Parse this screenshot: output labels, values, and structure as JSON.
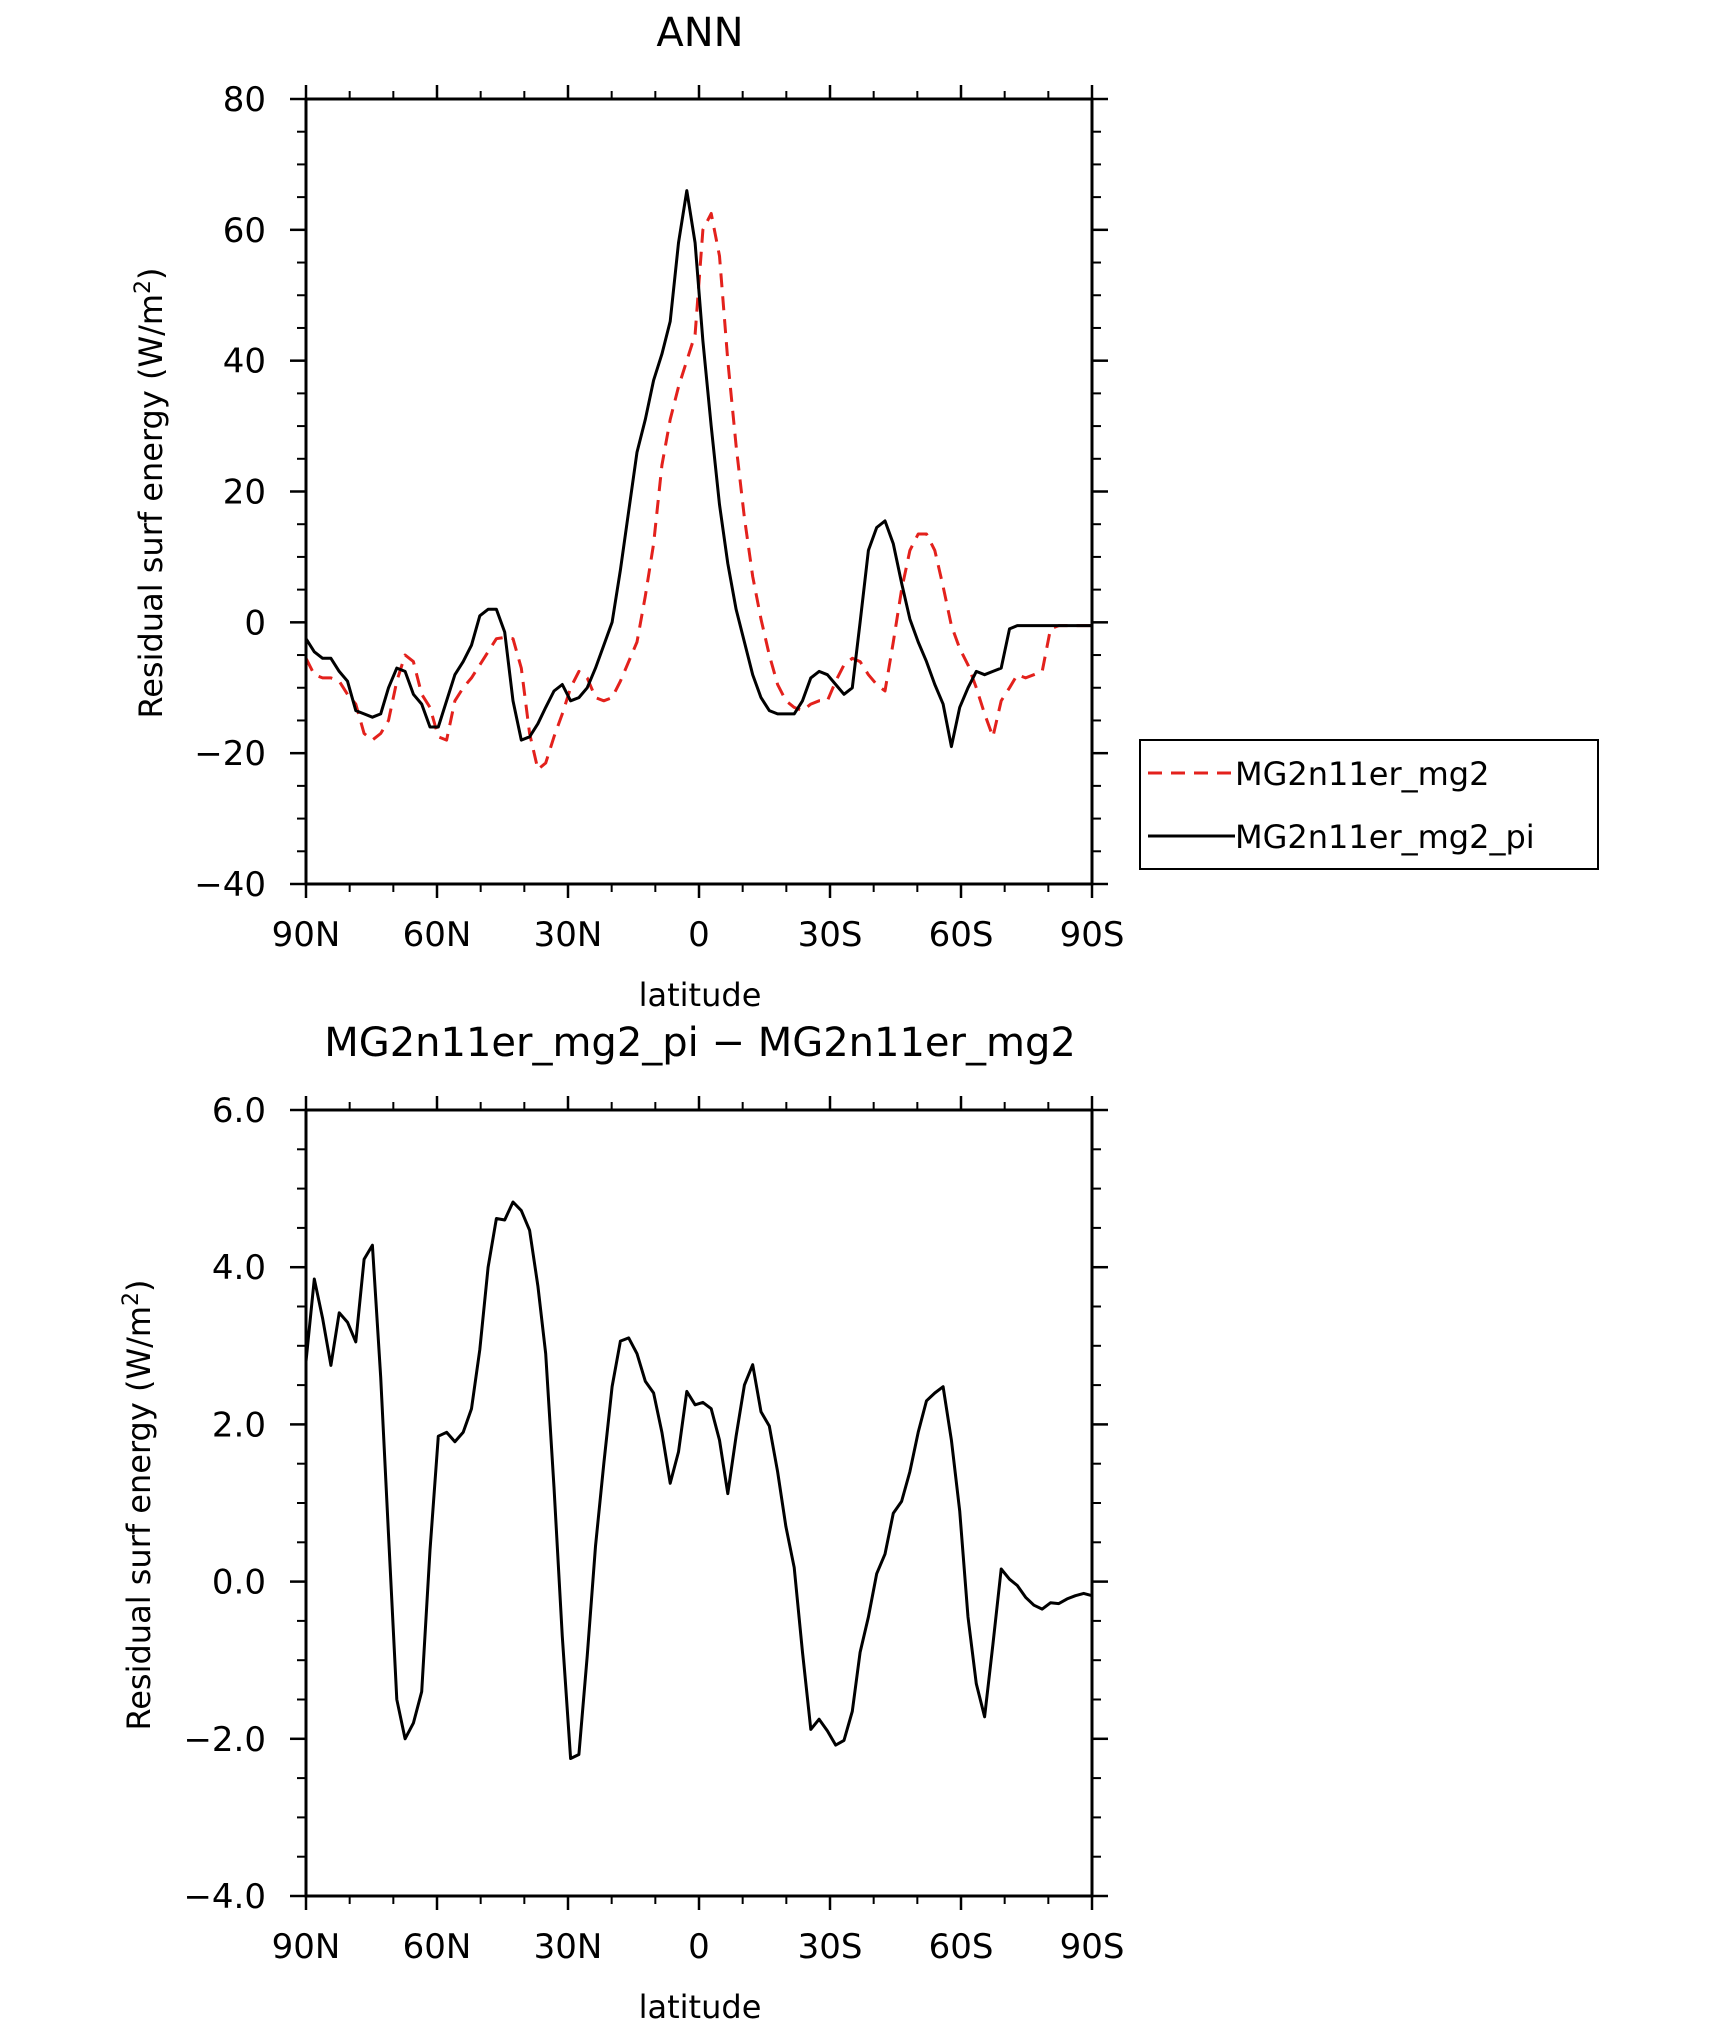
{
  "chart_data": [
    {
      "type": "line",
      "title": "ANN",
      "xlabel": "latitude",
      "ylabel": "Residual surf energy (W/m²)",
      "ylabel_parts": {
        "main": "Residual surf energy (W/m",
        "sup": "2",
        "end": ")"
      },
      "xlim": [
        90,
        -90
      ],
      "ylim": [
        -40,
        80
      ],
      "xticks": [
        {
          "value": 90,
          "label": "90N"
        },
        {
          "value": 60,
          "label": "60N"
        },
        {
          "value": 30,
          "label": "30N"
        },
        {
          "value": 0,
          "label": "0"
        },
        {
          "value": -30,
          "label": "30S"
        },
        {
          "value": -60,
          "label": "60S"
        },
        {
          "value": -90,
          "label": "90S"
        }
      ],
      "yticks": [
        {
          "value": 80,
          "label": "80"
        },
        {
          "value": 60,
          "label": "60"
        },
        {
          "value": 40,
          "label": "40"
        },
        {
          "value": 20,
          "label": "20"
        },
        {
          "value": 0,
          "label": "0"
        },
        {
          "value": -20,
          "label": "−20"
        },
        {
          "value": -40,
          "label": "−40"
        }
      ],
      "legend_position": "right",
      "series": [
        {
          "name": "MG2n11er_mg2",
          "color": "#e3211c",
          "dash": "dashed",
          "x": [
            90,
            88.1,
            86.2,
            84.3,
            82.4,
            80.5,
            78.6,
            76.7,
            74.8,
            72.9,
            71.1,
            69.2,
            67.3,
            65.4,
            63.5,
            61.6,
            59.7,
            57.8,
            55.9,
            54.0,
            52.1,
            50.2,
            48.3,
            46.4,
            44.5,
            42.6,
            40.7,
            38.8,
            36.9,
            35.1,
            33.2,
            31.3,
            29.4,
            27.5,
            25.6,
            23.7,
            21.8,
            19.9,
            18.0,
            16.1,
            14.2,
            12.3,
            10.4,
            8.5,
            6.6,
            4.7,
            2.8,
            0.9,
            -0.9,
            -2.8,
            -4.7,
            -6.6,
            -8.5,
            -10.4,
            -12.3,
            -14.2,
            -16.1,
            -18.0,
            -19.9,
            -21.8,
            -23.7,
            -25.6,
            -27.5,
            -29.4,
            -31.3,
            -33.2,
            -35.1,
            -36.9,
            -38.8,
            -40.7,
            -42.6,
            -44.5,
            -46.4,
            -48.3,
            -50.2,
            -52.1,
            -54.0,
            -55.9,
            -57.8,
            -59.7,
            -61.6,
            -63.5,
            -65.4,
            -67.3,
            -69.2,
            -71.1,
            -72.9,
            -74.8,
            -76.7,
            -78.6,
            -80.5,
            -82.4,
            -84.3,
            -86.2,
            -88.1,
            -90
          ],
          "y": [
            -5.5,
            -8,
            -8.5,
            -8.5,
            -9,
            -11,
            -12.5,
            -17,
            -18,
            -17,
            -15,
            -9,
            -5,
            -6,
            -11,
            -13,
            -17.5,
            -18,
            -12,
            -10,
            -8.5,
            -6.5,
            -4.5,
            -2.5,
            -2.3,
            -2.5,
            -7,
            -17,
            -22.5,
            -21.5,
            -17.5,
            -14,
            -10,
            -7.5,
            -8.5,
            -11.5,
            -12,
            -11.5,
            -9,
            -6,
            -3,
            4,
            12,
            24,
            31,
            36,
            40,
            44,
            60,
            62.5,
            56,
            40,
            27,
            16,
            7,
            0.5,
            -5,
            -9.5,
            -12,
            -13,
            -13.5,
            -12.5,
            -12,
            -12,
            -9,
            -6.5,
            -5.5,
            -6,
            -8,
            -9.5,
            -10.5,
            -3,
            5,
            11,
            13.5,
            13.5,
            11,
            5.5,
            -0.5,
            -4,
            -6.5,
            -10,
            -14,
            -17.5,
            -12,
            -10,
            -8,
            -8.5,
            -8,
            -7.5,
            -1,
            -0.5,
            -0.5,
            -0.5,
            -0.5,
            -0.5
          ]
        },
        {
          "name": "MG2n11er_mg2_pi",
          "color": "#000000",
          "dash": "solid",
          "x": [
            90,
            88.1,
            86.2,
            84.3,
            82.4,
            80.5,
            78.6,
            76.7,
            74.8,
            72.9,
            71.1,
            69.2,
            67.3,
            65.4,
            63.5,
            61.6,
            59.7,
            57.8,
            55.9,
            54.0,
            52.1,
            50.2,
            48.3,
            46.4,
            44.5,
            42.6,
            40.7,
            38.8,
            36.9,
            35.1,
            33.2,
            31.3,
            29.4,
            27.5,
            25.6,
            23.7,
            21.8,
            19.9,
            18.0,
            16.1,
            14.2,
            12.3,
            10.4,
            8.5,
            6.6,
            4.7,
            2.8,
            0.9,
            -0.9,
            -2.8,
            -4.7,
            -6.6,
            -8.5,
            -10.4,
            -12.3,
            -14.2,
            -16.1,
            -18.0,
            -19.9,
            -21.8,
            -23.7,
            -25.6,
            -27.5,
            -29.4,
            -31.3,
            -33.2,
            -35.1,
            -36.9,
            -38.8,
            -40.7,
            -42.6,
            -44.5,
            -46.4,
            -48.3,
            -50.2,
            -52.1,
            -54.0,
            -55.9,
            -57.8,
            -59.7,
            -61.6,
            -63.5,
            -65.4,
            -67.3,
            -69.2,
            -71.1,
            -72.9,
            -74.8,
            -76.7,
            -78.6,
            -80.5,
            -82.4,
            -84.3,
            -86.2,
            -88.1,
            -90
          ],
          "y": [
            -2.5,
            -4.5,
            -5.5,
            -5.5,
            -7.5,
            -9,
            -13.5,
            -14,
            -14.5,
            -14,
            -10,
            -7,
            -7.5,
            -11,
            -12.5,
            -16,
            -16,
            -12,
            -8,
            -6,
            -3.5,
            1,
            2,
            2,
            -1.5,
            -12,
            -18,
            -17.5,
            -15.5,
            -13,
            -10.5,
            -9.5,
            -12,
            -11.5,
            -10,
            -7,
            -3.5,
            0,
            8,
            17,
            26,
            31,
            37,
            41,
            46,
            58,
            66,
            58,
            43,
            30,
            18,
            9,
            2,
            -3,
            -8,
            -11.5,
            -13.5,
            -14,
            -14,
            -14,
            -12,
            -8.5,
            -7.5,
            -8,
            -9.5,
            -11,
            -10,
            0,
            11,
            14.5,
            15.5,
            12,
            6,
            0.5,
            -3,
            -6,
            -9.5,
            -12.5,
            -19,
            -13,
            -10,
            -7.5,
            -8,
            -7.5,
            -7,
            -1,
            -0.5,
            -0.5,
            -0.5,
            -0.5,
            -0.5,
            -0.5,
            -0.5,
            -0.5,
            -0.5,
            -0.5
          ]
        }
      ]
    },
    {
      "type": "line",
      "title": "MG2n11er_mg2_pi − MG2n11er_mg2",
      "xlabel": "latitude",
      "ylabel": "Residual surf energy (W/m²)",
      "ylabel_parts": {
        "main": "Residual surf energy (W/m",
        "sup": "2",
        "end": ")"
      },
      "xlim": [
        90,
        -90
      ],
      "ylim": [
        -4.0,
        6.0
      ],
      "xticks": [
        {
          "value": 90,
          "label": "90N"
        },
        {
          "value": 60,
          "label": "60N"
        },
        {
          "value": 30,
          "label": "30N"
        },
        {
          "value": 0,
          "label": "0"
        },
        {
          "value": -30,
          "label": "30S"
        },
        {
          "value": -60,
          "label": "60S"
        },
        {
          "value": -90,
          "label": "90S"
        }
      ],
      "yticks": [
        {
          "value": 6,
          "label": "6.0"
        },
        {
          "value": 4,
          "label": "4.0"
        },
        {
          "value": 2,
          "label": "2.0"
        },
        {
          "value": 0,
          "label": "0.0"
        },
        {
          "value": -2,
          "label": "−2.0"
        },
        {
          "value": -4,
          "label": "−4.0"
        }
      ],
      "series": [
        {
          "color": "#000000",
          "dash": "solid",
          "x": [
            90,
            88.1,
            86.2,
            84.3,
            82.4,
            80.5,
            78.6,
            76.7,
            74.8,
            72.9,
            71.1,
            69.2,
            67.3,
            65.4,
            63.5,
            61.6,
            59.7,
            57.8,
            55.9,
            54.0,
            52.1,
            50.2,
            48.3,
            46.4,
            44.5,
            42.6,
            40.7,
            38.8,
            36.9,
            35.1,
            33.2,
            31.3,
            29.4,
            27.5,
            25.6,
            23.7,
            21.8,
            19.9,
            18.0,
            16.1,
            14.2,
            12.3,
            10.4,
            8.5,
            6.6,
            4.7,
            2.8,
            0.9,
            -0.9,
            -2.8,
            -4.7,
            -6.6,
            -8.5,
            -10.4,
            -12.3,
            -14.2,
            -16.1,
            -18.0,
            -19.9,
            -21.8,
            -23.7,
            -25.6,
            -27.5,
            -29.4,
            -31.3,
            -33.2,
            -35.1,
            -36.9,
            -38.8,
            -40.7,
            -42.6,
            -44.5,
            -46.4,
            -48.3,
            -50.2,
            -52.1,
            -54.0,
            -55.9,
            -57.8,
            -59.7,
            -61.6,
            -63.5,
            -65.4,
            -67.3,
            -69.2,
            -71.1,
            -72.9,
            -74.8,
            -76.7,
            -78.6,
            -80.5,
            -82.4,
            -84.3,
            -86.2,
            -88.1,
            -90
          ],
          "y": [
            2.8,
            3.85,
            3.35,
            2.75,
            3.42,
            3.3,
            3.05,
            4.1,
            4.28,
            2.6,
            0.6,
            -1.5,
            -2.0,
            -1.8,
            -1.4,
            0.4,
            1.85,
            1.9,
            1.78,
            1.9,
            2.2,
            2.95,
            4.0,
            4.62,
            4.6,
            4.83,
            4.72,
            4.47,
            3.76,
            2.9,
            1.2,
            -0.7,
            -2.25,
            -2.2,
            -0.95,
            0.45,
            1.5,
            2.48,
            3.06,
            3.1,
            2.9,
            2.55,
            2.4,
            1.9,
            1.25,
            1.65,
            2.42,
            2.25,
            2.28,
            2.2,
            1.8,
            1.12,
            1.85,
            2.5,
            2.76,
            2.16,
            1.98,
            1.4,
            0.7,
            0.18,
            -0.9,
            -1.88,
            -1.75,
            -1.9,
            -2.08,
            -2.02,
            -1.65,
            -0.9,
            -0.45,
            0.1,
            0.35,
            0.87,
            1.02,
            1.4,
            1.9,
            2.3,
            2.4,
            2.48,
            1.8,
            0.9,
            -0.45,
            -1.3,
            -1.72,
            -0.8,
            0.16,
            0.03,
            -0.05,
            -0.2,
            -0.3,
            -0.35,
            -0.27,
            -0.28,
            -0.22,
            -0.18,
            -0.15,
            -0.18
          ]
        }
      ]
    }
  ]
}
